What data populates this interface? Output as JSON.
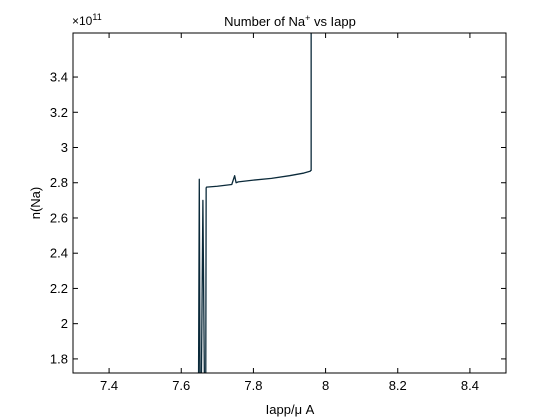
{
  "chart_data": {
    "type": "line",
    "title_main": "Number of Na",
    "title_sup": "+",
    "title_rest": " vs Iapp",
    "xlabel": "Iapp/μ A",
    "ylabel": "n(Na)",
    "y_exponent_base": "×10",
    "y_exponent": "11",
    "xlim": [
      7.3,
      8.5
    ],
    "ylim": [
      1.72,
      3.65
    ],
    "xticks": [
      7.4,
      7.6,
      7.8,
      8.0,
      8.2,
      8.4
    ],
    "xtick_labels": [
      "7.4",
      "7.6",
      "7.8",
      "8",
      "8.2",
      "8.4"
    ],
    "yticks": [
      1.8,
      2.0,
      2.2,
      2.4,
      2.6,
      2.8,
      3.0,
      3.2,
      3.4
    ],
    "ytick_labels": [
      "1.8",
      "2",
      "2.2",
      "2.4",
      "2.6",
      "2.8",
      "3",
      "3.2",
      "3.4"
    ],
    "grid": false,
    "series": [
      {
        "color": "#0b2a3a",
        "x": [
          7.648,
          7.65,
          7.652,
          7.655,
          7.656,
          7.66,
          7.664,
          7.668,
          7.669,
          7.67,
          7.7,
          7.74,
          7.748,
          7.752,
          7.758,
          7.8,
          7.85,
          7.9,
          7.94,
          7.957,
          7.959,
          7.96,
          7.96
        ],
        "y": [
          1.72,
          2.82,
          1.72,
          1.72,
          1.72,
          2.7,
          1.72,
          1.72,
          2.77,
          2.775,
          2.78,
          2.79,
          2.84,
          2.8,
          2.805,
          2.815,
          2.825,
          2.84,
          2.855,
          2.865,
          2.87,
          2.87,
          3.65
        ]
      }
    ]
  }
}
